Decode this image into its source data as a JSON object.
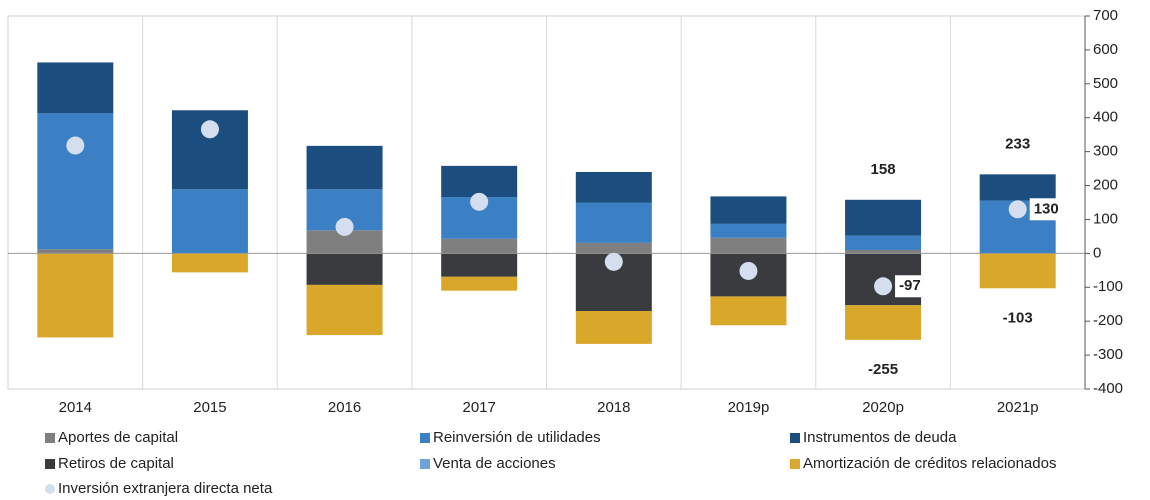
{
  "chart_data": {
    "type": "bar",
    "categories": [
      "2014",
      "2015",
      "2016",
      "2017",
      "2018",
      "2019p",
      "2020p",
      "2021p"
    ],
    "series": [
      {
        "name": "Aportes de capital",
        "color": "#7f7f7f",
        "values": [
          12,
          0,
          68,
          43,
          31,
          46,
          10,
          0
        ]
      },
      {
        "name": "Venta de acciones",
        "color": "#6fa3d8",
        "values": [
          0,
          0,
          0,
          0,
          0,
          0,
          0,
          0
        ]
      },
      {
        "name": "Reinversión de utilidades",
        "color": "#3b7fc4",
        "values": [
          401,
          189,
          121,
          123,
          118,
          41,
          42,
          156
        ]
      },
      {
        "name": "Instrumentos de deuda",
        "color": "#1b4e7e",
        "values": [
          150,
          233,
          128,
          92,
          91,
          81,
          106,
          77
        ]
      },
      {
        "name": "Retiros de capital",
        "color": "#3a3b3e",
        "values": [
          0,
          0,
          -93,
          -69,
          -170,
          -127,
          -153,
          0
        ]
      },
      {
        "name": "Amortización de créditos relacionados",
        "color": "#d9a82a",
        "values": [
          -248,
          -56,
          -148,
          -41,
          -97,
          -85,
          -102,
          -103
        ]
      },
      {
        "name": "Inversión extranjera directa neta",
        "color": "#d4deef",
        "type": "scatter",
        "values": [
          318,
          366,
          78,
          152,
          -25,
          -52,
          -97,
          130
        ]
      }
    ],
    "legend_order": [
      0,
      2,
      3,
      4,
      1,
      5,
      6
    ],
    "annotations": [
      {
        "category": "2020p",
        "value": 158,
        "anchor": "stack-top"
      },
      {
        "category": "2020p",
        "value": -255,
        "anchor": "stack-bottom"
      },
      {
        "category": "2020p",
        "value": -97,
        "anchor": "marker"
      },
      {
        "category": "2021p",
        "value": 233,
        "anchor": "stack-top"
      },
      {
        "category": "2021p",
        "value": -103,
        "anchor": "stack-bottom"
      },
      {
        "category": "2021p",
        "value": 130,
        "anchor": "marker"
      }
    ],
    "ylim": [
      -400,
      700
    ],
    "yticks": [
      -400,
      -300,
      -200,
      -100,
      0,
      100,
      200,
      300,
      400,
      500,
      600,
      700
    ],
    "y_axis_side": "right",
    "grid": false
  }
}
